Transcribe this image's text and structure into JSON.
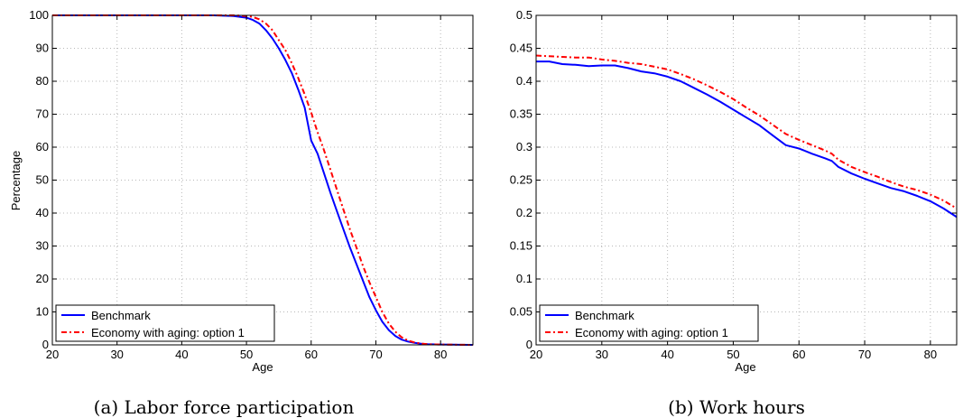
{
  "chart_data": [
    {
      "type": "line",
      "id": "a",
      "caption": "(a) Labor force participation",
      "xlabel": "Age",
      "ylabel": "Percentage",
      "xlim": [
        20,
        85
      ],
      "ylim": [
        0,
        100
      ],
      "xticks": [
        20,
        30,
        40,
        50,
        60,
        70,
        80
      ],
      "yticks": [
        0,
        10,
        20,
        30,
        40,
        50,
        60,
        70,
        80,
        90,
        100
      ],
      "grid": true,
      "legend_position": "bottom-left",
      "series": [
        {
          "name": "Benchmark",
          "color": "#0000ff",
          "style": "solid",
          "x": [
            20,
            30,
            40,
            45,
            48,
            50,
            51,
            52,
            53,
            54,
            55,
            56,
            57,
            58,
            59,
            60,
            61,
            62,
            63,
            64,
            65,
            66,
            67,
            68,
            69,
            70,
            71,
            72,
            73,
            74,
            75,
            76,
            77,
            78,
            80,
            82,
            85
          ],
          "y": [
            100,
            100,
            100,
            100,
            99.8,
            99.3,
            98.6,
            97.5,
            95.5,
            93,
            90,
            86.5,
            82.5,
            77.5,
            72,
            62,
            58,
            52,
            46,
            40.5,
            35,
            29.5,
            24.5,
            19.5,
            14.5,
            10.5,
            7,
            4.5,
            2.7,
            1.6,
            1,
            0.6,
            0.35,
            0.2,
            0.1,
            0.05,
            0
          ]
        },
        {
          "name": "Economy with aging: option 1",
          "color": "#ff0000",
          "style": "dashdot",
          "x": [
            20,
            30,
            40,
            45,
            48,
            50,
            51,
            52,
            53,
            54,
            55,
            56,
            57,
            58,
            59,
            60,
            61,
            62,
            63,
            64,
            65,
            66,
            67,
            68,
            69,
            70,
            71,
            72,
            73,
            74,
            75,
            76,
            77,
            78,
            80,
            82,
            85
          ],
          "y": [
            100,
            100,
            100,
            100,
            100,
            99.8,
            99.5,
            98.8,
            97.5,
            95.5,
            92.5,
            89.5,
            85.5,
            81,
            76,
            70.5,
            64.5,
            59,
            53,
            47,
            41,
            35,
            29.5,
            24,
            19,
            14.5,
            10,
            6.5,
            4,
            2.3,
            1.3,
            0.7,
            0.4,
            0.2,
            0.1,
            0.05,
            0
          ]
        }
      ]
    },
    {
      "type": "line",
      "id": "b",
      "caption": "(b) Work hours",
      "xlabel": "Age",
      "ylabel": "",
      "xlim": [
        20,
        84
      ],
      "ylim": [
        0,
        0.5
      ],
      "xticks": [
        20,
        30,
        40,
        50,
        60,
        70,
        80
      ],
      "yticks": [
        0,
        0.05,
        0.1,
        0.15,
        0.2,
        0.25,
        0.3,
        0.35,
        0.4,
        0.45,
        0.5
      ],
      "grid": true,
      "legend_position": "bottom-left",
      "series": [
        {
          "name": "Benchmark",
          "color": "#0000ff",
          "style": "solid",
          "x": [
            20,
            22,
            24,
            26,
            28,
            30,
            32,
            34,
            36,
            38,
            40,
            42,
            44,
            46,
            48,
            50,
            52,
            54,
            56,
            58,
            60,
            62,
            64,
            65,
            66,
            68,
            70,
            72,
            74,
            76,
            78,
            80,
            82,
            84
          ],
          "y": [
            0.43,
            0.43,
            0.426,
            0.425,
            0.423,
            0.424,
            0.424,
            0.42,
            0.415,
            0.412,
            0.407,
            0.4,
            0.39,
            0.38,
            0.369,
            0.357,
            0.345,
            0.333,
            0.318,
            0.303,
            0.298,
            0.29,
            0.283,
            0.279,
            0.27,
            0.26,
            0.252,
            0.245,
            0.238,
            0.233,
            0.226,
            0.218,
            0.207,
            0.194
          ]
        },
        {
          "name": "Economy with aging: option 1",
          "color": "#ff0000",
          "style": "dashdot",
          "x": [
            20,
            22,
            24,
            26,
            28,
            30,
            32,
            34,
            36,
            38,
            40,
            42,
            44,
            46,
            48,
            50,
            52,
            54,
            56,
            58,
            60,
            62,
            64,
            65,
            66,
            68,
            70,
            72,
            74,
            76,
            78,
            80,
            82,
            84
          ],
          "y": [
            0.439,
            0.438,
            0.437,
            0.436,
            0.436,
            0.433,
            0.431,
            0.428,
            0.426,
            0.422,
            0.418,
            0.411,
            0.403,
            0.394,
            0.384,
            0.373,
            0.36,
            0.348,
            0.334,
            0.32,
            0.311,
            0.303,
            0.295,
            0.29,
            0.281,
            0.27,
            0.262,
            0.255,
            0.247,
            0.24,
            0.235,
            0.228,
            0.219,
            0.207
          ]
        }
      ]
    }
  ]
}
